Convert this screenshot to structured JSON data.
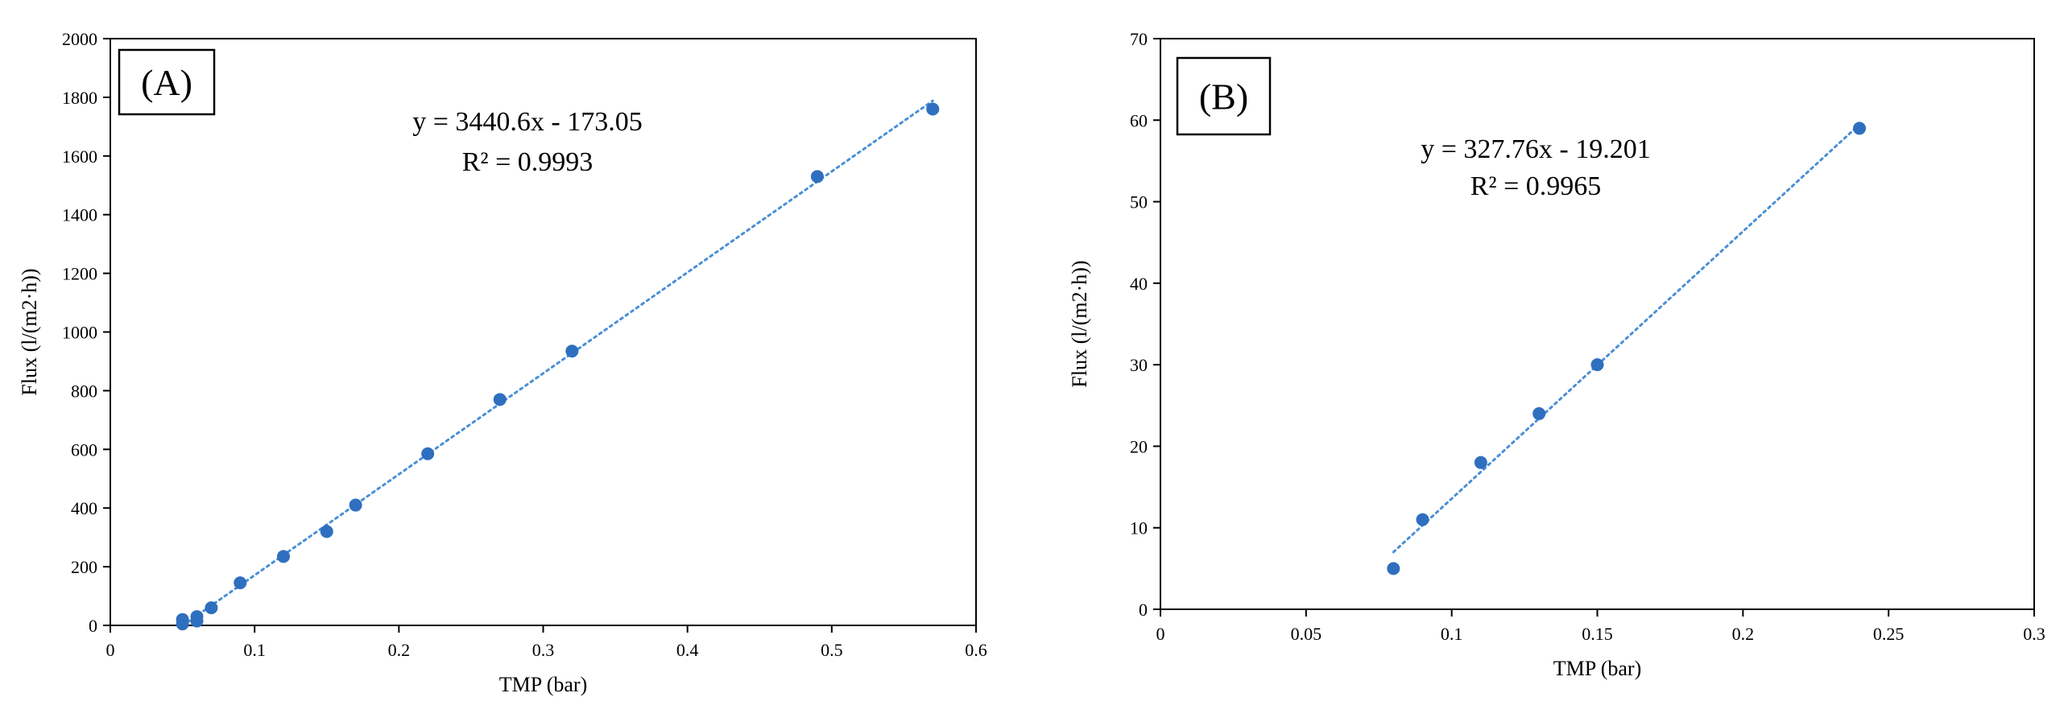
{
  "chart_data": [
    {
      "type": "scatter",
      "panel_label": "(A)",
      "xlabel": "TMP (bar)",
      "ylabel": "Flux (l/(m2·h))",
      "xlim": [
        0,
        0.6
      ],
      "ylim": [
        0,
        2000
      ],
      "xticks": [
        "0",
        "0.1",
        "0.2",
        "0.3",
        "0.4",
        "0.5",
        "0.6"
      ],
      "yticks": [
        "0",
        "200",
        "400",
        "600",
        "800",
        "1000",
        "1200",
        "1400",
        "1600",
        "1800",
        "2000"
      ],
      "grid": false,
      "series": [
        {
          "x": [
            0.05,
            0.05,
            0.06,
            0.06,
            0.07,
            0.09,
            0.12,
            0.15,
            0.17,
            0.22,
            0.27,
            0.32,
            0.49,
            0.57
          ],
          "y": [
            5,
            20,
            15,
            30,
            60,
            145,
            235,
            320,
            410,
            585,
            770,
            935,
            1530,
            1760
          ],
          "color": "#2f6fbf"
        }
      ],
      "trendline": {
        "type": "linear",
        "slope": 3440.6,
        "intercept": -173.05,
        "x_range": [
          0.05,
          0.57
        ],
        "style": "dotted",
        "color": "#4a8fd6"
      },
      "annotations": [
        "y = 3440.6x - 173.05",
        "R² = 0.9993"
      ]
    },
    {
      "type": "scatter",
      "panel_label": "(B)",
      "xlabel": "TMP (bar)",
      "ylabel": "Flux (l/(m2·h))",
      "xlim": [
        0,
        0.3
      ],
      "ylim": [
        0,
        70
      ],
      "xticks": [
        "0",
        "0.05",
        "0.1",
        "0.15",
        "0.2",
        "0.25",
        "0.3"
      ],
      "yticks": [
        "0",
        "10",
        "20",
        "30",
        "40",
        "50",
        "60",
        "70"
      ],
      "grid": false,
      "series": [
        {
          "x": [
            0.08,
            0.09,
            0.11,
            0.13,
            0.15,
            0.24
          ],
          "y": [
            5,
            11,
            18,
            24,
            30,
            59
          ],
          "color": "#2f6fbf"
        }
      ],
      "trendline": {
        "type": "linear",
        "slope": 327.76,
        "intercept": -19.201,
        "x_range": [
          0.08,
          0.24
        ],
        "style": "dotted",
        "color": "#4a8fd6"
      },
      "annotations": [
        "y = 327.76x - 19.201",
        "R² = 0.9965"
      ]
    }
  ]
}
